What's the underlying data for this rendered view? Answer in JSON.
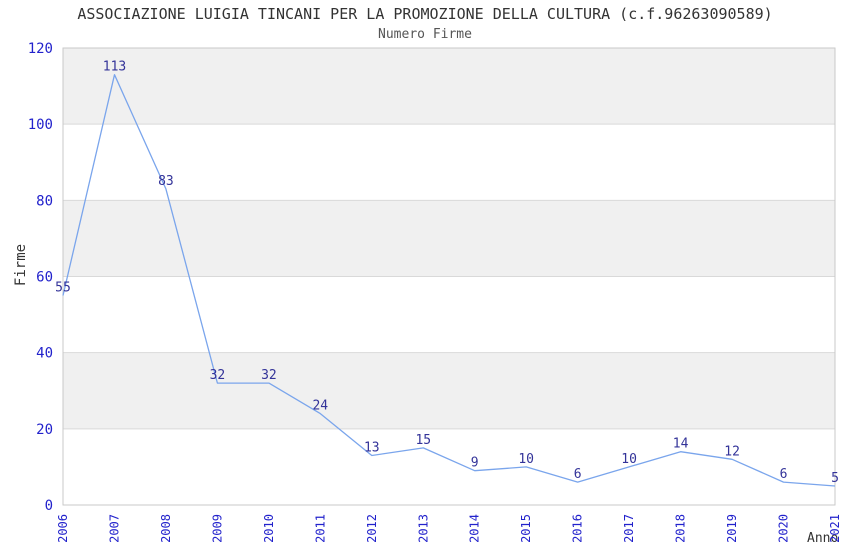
{
  "chart_data": {
    "type": "line",
    "title": "ASSOCIAZIONE LUIGIA TINCANI PER LA PROMOZIONE DELLA CULTURA (c.f.96263090589)",
    "subtitle": "Numero Firme",
    "xlabel": "Anno",
    "ylabel": "Firme",
    "categories": [
      "2006",
      "2007",
      "2008",
      "2009",
      "2010",
      "2011",
      "2012",
      "2013",
      "2014",
      "2015",
      "2016",
      "2017",
      "2018",
      "2019",
      "2020",
      "2021"
    ],
    "series": [
      {
        "name": "Numero Firme",
        "values": [
          55,
          113,
          83,
          32,
          32,
          24,
          13,
          15,
          9,
          10,
          6,
          10,
          14,
          12,
          6,
          5
        ]
      }
    ],
    "ylim": [
      0,
      120
    ],
    "ytick_step": 20,
    "grid": "horizontal-bands-alternating",
    "legend_position": "none",
    "point_labels_visible": true,
    "colors": {
      "line": "#7aa5ec",
      "band_gray": "#f0f0f0",
      "band_white": "#ffffff",
      "gridline": "#d9d9d9",
      "plot_border": "#c9c9c9",
      "tick_label": "#2222cc",
      "point_label": "#333399",
      "title": "#333333",
      "subtitle": "#555555",
      "axis_title": "#333333"
    }
  }
}
